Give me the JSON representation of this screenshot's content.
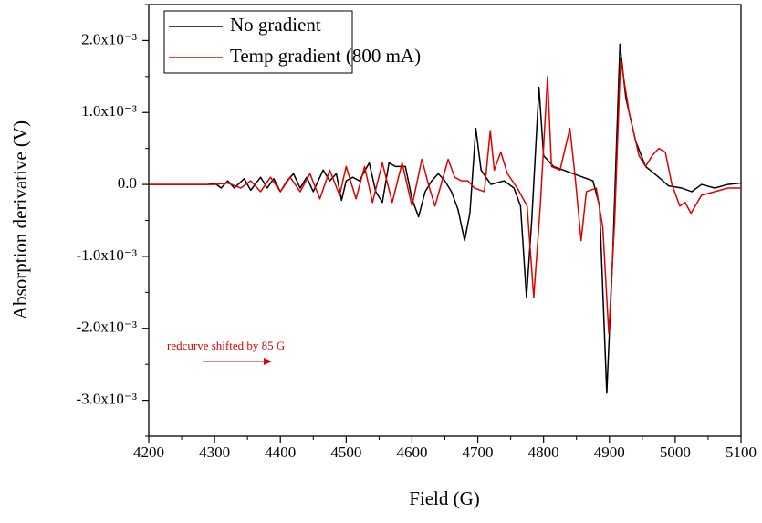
{
  "chart_data": {
    "type": "line",
    "xlabel": "Field (G)",
    "ylabel": "Absorption derivative (V)",
    "annotation": "redcurve shifted by 85 G",
    "legend": "upper left",
    "xlim": [
      4200,
      5100
    ],
    "xticks": [
      4200,
      4300,
      4400,
      4500,
      4600,
      4700,
      4800,
      4900,
      5000,
      5100
    ],
    "ylim": [
      -0.0035,
      0.0025
    ],
    "yticks": [
      {
        "value": -0.003,
        "label": "-3.0x10⁻³"
      },
      {
        "value": -0.002,
        "label": "-2.0x10⁻³"
      },
      {
        "value": -0.001,
        "label": "-1.0x10⁻³"
      },
      {
        "value": 0,
        "label": "0.0"
      },
      {
        "value": 0.001,
        "label": "1.0x10⁻³"
      },
      {
        "value": 0.002,
        "label": "2.0x10⁻³"
      }
    ],
    "series": [
      {
        "name": "No gradient",
        "color": "#000000",
        "x": [
          4200,
          4290,
          4300,
          4310,
          4320,
          4330,
          4345,
          4355,
          4370,
          4380,
          4390,
          4400,
          4410,
          4420,
          4430,
          4440,
          4450,
          4465,
          4475,
          4485,
          4493,
          4500,
          4510,
          4520,
          4535,
          4545,
          4555,
          4565,
          4575,
          4590,
          4600,
          4610,
          4620,
          4630,
          4640,
          4650,
          4660,
          4670,
          4680,
          4688,
          4697,
          4705,
          4720,
          4740,
          4755,
          4765,
          4774,
          4782,
          4793,
          4800,
          4815,
          4830,
          4845,
          4860,
          4875,
          4885,
          4896,
          4905,
          4916,
          4925,
          4940,
          4955,
          4975,
          4990,
          5010,
          5025,
          5040,
          5060,
          5080,
          5100
        ],
        "values": [
          0,
          0,
          2e-05,
          -5e-05,
          5e-05,
          -5e-05,
          8e-05,
          -8e-05,
          0.0001,
          -5e-05,
          8e-05,
          -0.0001,
          5e-05,
          0.00015,
          -5e-05,
          0.0001,
          -0.0001,
          0.0002,
          5e-05,
          0.00015,
          -0.00022,
          5e-05,
          0.0001,
          5e-05,
          0.0003,
          -0.0001,
          -0.00025,
          0.0003,
          0.00025,
          0.00025,
          -0.0002,
          -0.00045,
          -0.0001,
          5e-05,
          0.00015,
          5e-05,
          -0.0001,
          -0.00035,
          -0.00078,
          -0.0004,
          0.00078,
          0.0002,
          0,
          5e-05,
          -5e-05,
          -0.0003,
          -0.00157,
          -0.0005,
          0.00135,
          0.0004,
          0.00025,
          0.0002,
          0.00015,
          0.0001,
          5e-05,
          -0.0003,
          -0.0029,
          -0.001,
          0.00195,
          0.0012,
          0.0006,
          0.00025,
          0.0001,
          -2e-05,
          -5e-05,
          -0.0001,
          0,
          -5e-05,
          0,
          2e-05
        ]
      },
      {
        "name": "Temp gradient (800 mA)",
        "color": "#e00000",
        "x": [
          4200,
          4300,
          4320,
          4340,
          4355,
          4370,
          4385,
          4400,
          4415,
          4430,
          4445,
          4460,
          4475,
          4490,
          4500,
          4515,
          4528,
          4540,
          4555,
          4570,
          4585,
          4600,
          4615,
          4625,
          4635,
          4655,
          4665,
          4675,
          4685,
          4695,
          4710,
          4719,
          4725,
          4735,
          4745,
          4760,
          4775,
          4785,
          4795,
          4806,
          4812,
          4825,
          4840,
          4848,
          4857,
          4865,
          4880,
          4890,
          4899,
          4908,
          4917,
          4930,
          4945,
          4955,
          4965,
          4975,
          4985,
          4995,
          5007,
          5015,
          5024,
          5040,
          5060,
          5080,
          5100
        ],
        "values": [
          0,
          0,
          2e-05,
          -5e-05,
          5e-05,
          -0.0001,
          0.0001,
          -0.0001,
          0.0001,
          -0.0001,
          0.00015,
          -0.0002,
          0.0002,
          -0.00015,
          0.00025,
          -0.0002,
          0.00025,
          -0.00025,
          0.0003,
          -0.00025,
          0.0003,
          -0.0003,
          0.00035,
          0,
          -0.0003,
          0.00035,
          0.0001,
          5e-05,
          5e-05,
          -5e-05,
          -0.0001,
          0.00075,
          0.0002,
          0.00045,
          0.00015,
          -5e-05,
          -0.0003,
          -0.00157,
          -0.0003,
          0.0015,
          0.00025,
          0.0002,
          0.00078,
          0.0001,
          -0.00078,
          -0.0001,
          -5e-05,
          -0.0006,
          -0.00207,
          -0.0005,
          0.00175,
          0.001,
          0.0004,
          0.00025,
          0.0004,
          0.0005,
          0.00045,
          0,
          -0.0003,
          -0.00025,
          -0.0004,
          -0.00015,
          -0.0001,
          -5e-05,
          -5e-05
        ]
      }
    ]
  }
}
